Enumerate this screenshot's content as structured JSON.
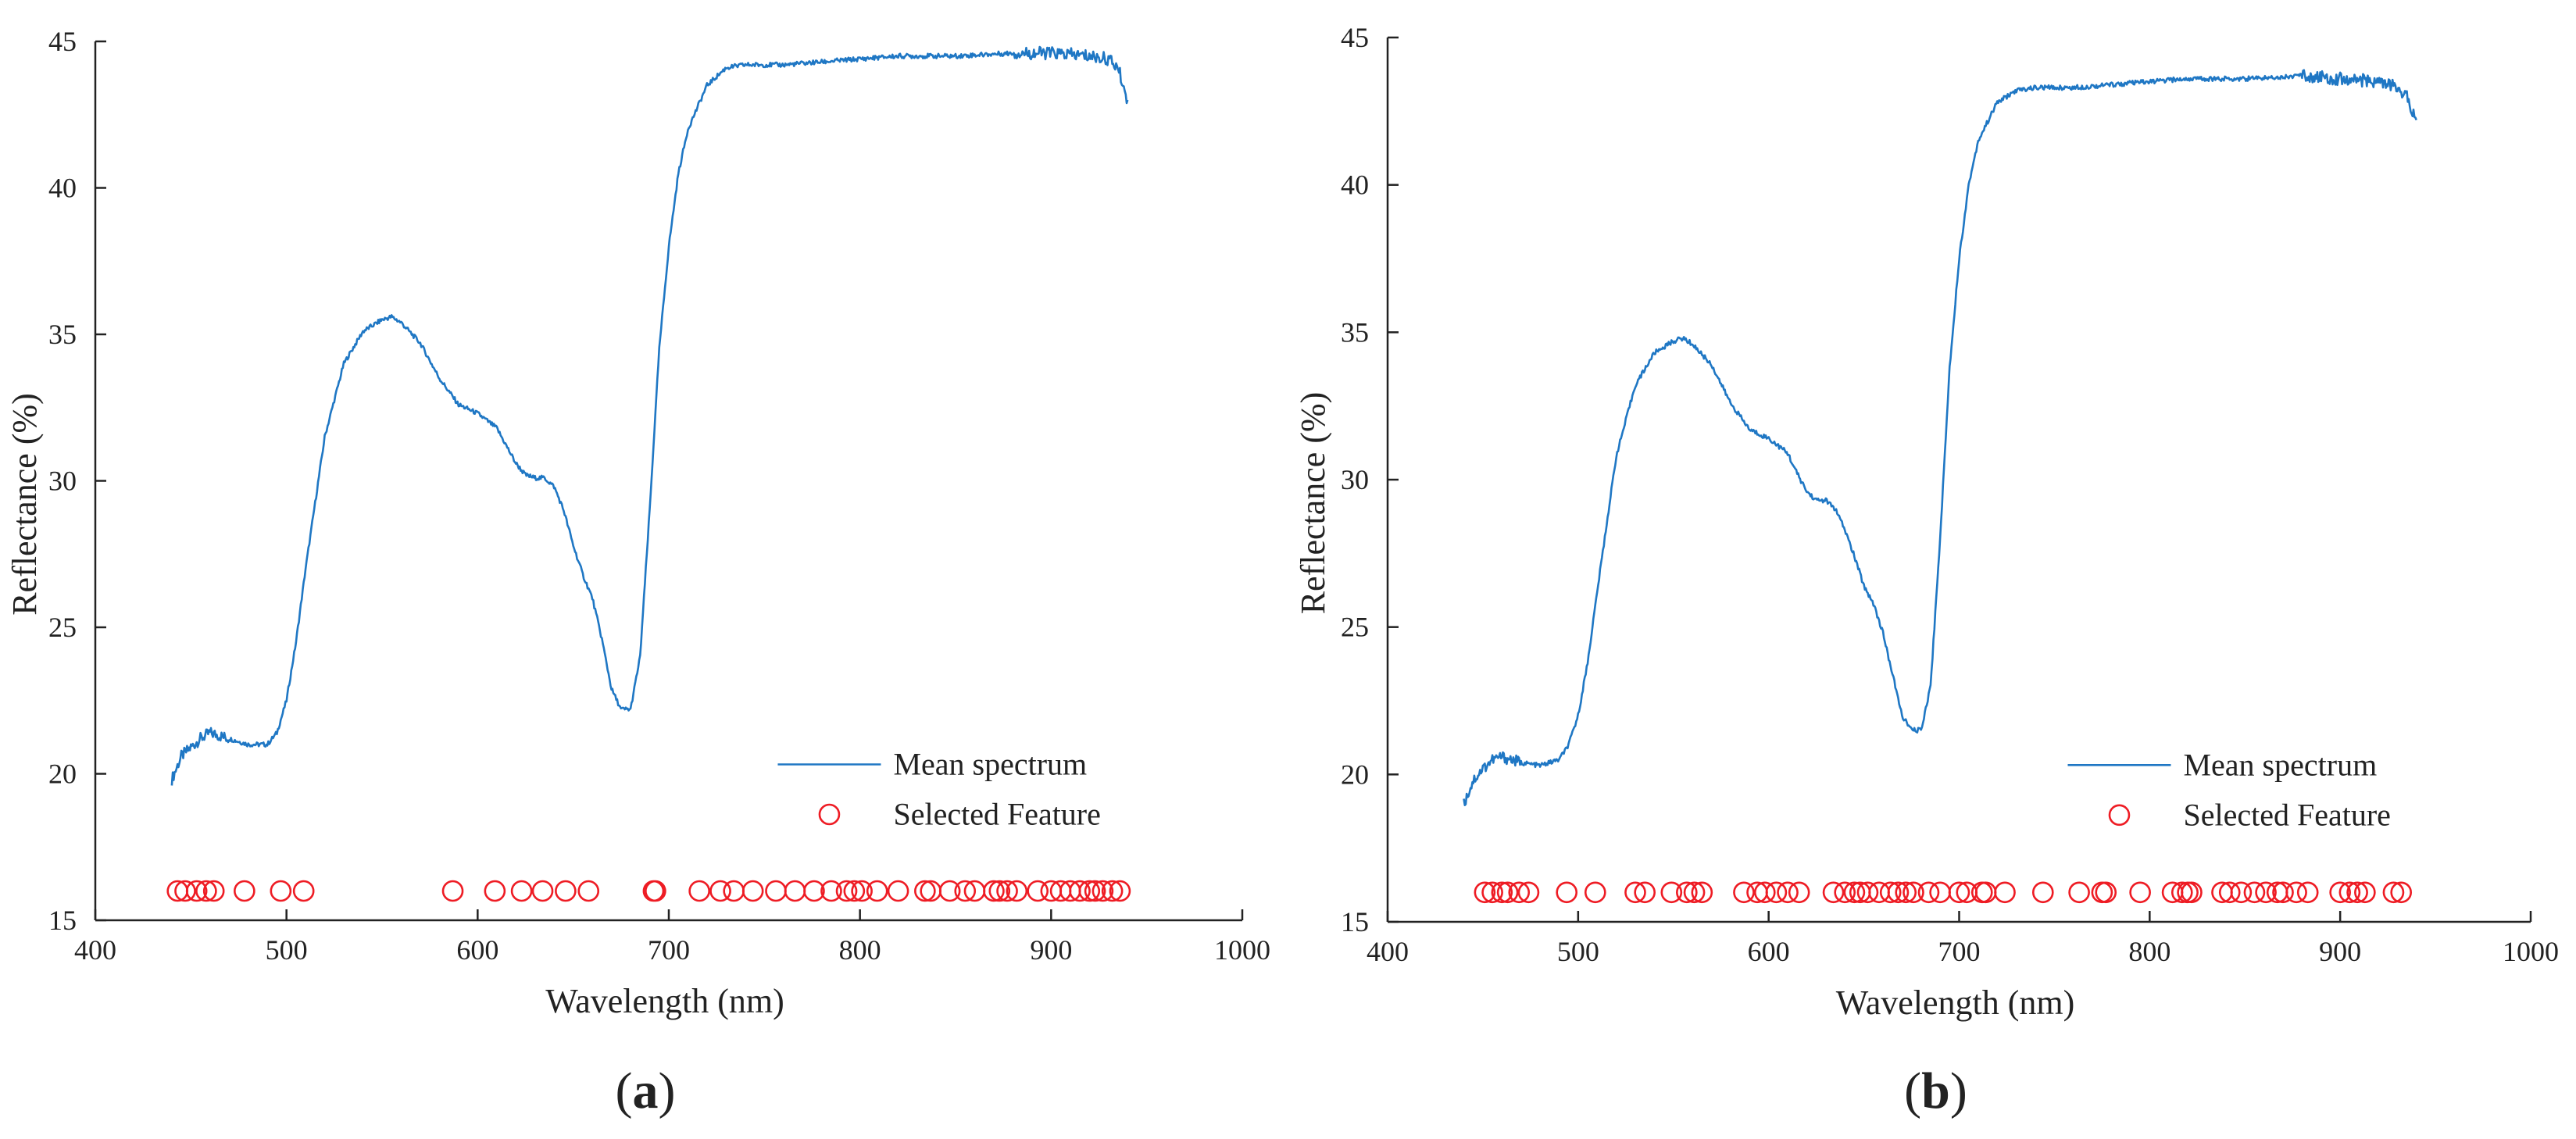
{
  "colors": {
    "spectrum": "#1f77c4",
    "feature": "#ee1c24",
    "axis": "#222222"
  },
  "chart_data": [
    {
      "type": "line",
      "panel_label": "a",
      "xlabel": "Wavelength (nm)",
      "ylabel": "Reflectance (%)",
      "xlim": [
        400,
        1000
      ],
      "ylim": [
        15,
        45
      ],
      "x_ticks": [
        400,
        500,
        600,
        700,
        800,
        900,
        1000
      ],
      "y_ticks": [
        15,
        20,
        25,
        30,
        35,
        40,
        45
      ],
      "legend": [
        "Mean spectrum",
        "Selected Feature"
      ],
      "legend_position": "lower-right",
      "series": [
        {
          "name": "Mean spectrum",
          "kind": "line",
          "x": [
            440,
            445,
            450,
            455,
            460,
            470,
            480,
            490,
            495,
            500,
            505,
            510,
            520,
            530,
            540,
            550,
            555,
            560,
            570,
            580,
            590,
            600,
            610,
            615,
            620,
            625,
            630,
            635,
            640,
            645,
            650,
            655,
            660,
            665,
            670,
            675,
            680,
            685,
            690,
            695,
            700,
            705,
            710,
            720,
            730,
            740,
            760,
            780,
            800,
            820,
            850,
            880,
            900,
            920,
            930,
            935,
            940
          ],
          "y": [
            19.8,
            20.6,
            20.9,
            21.2,
            21.4,
            21.2,
            21.0,
            21.0,
            21.4,
            22.5,
            24.5,
            27.0,
            31.5,
            34.0,
            35.1,
            35.5,
            35.6,
            35.4,
            34.7,
            33.5,
            32.6,
            32.3,
            31.8,
            31.2,
            30.6,
            30.2,
            30.1,
            30.1,
            29.8,
            29.0,
            27.8,
            26.8,
            26.0,
            24.6,
            22.9,
            22.2,
            22.2,
            24.0,
            29.0,
            34.5,
            38.0,
            40.5,
            42.0,
            43.5,
            44.1,
            44.2,
            44.2,
            44.3,
            44.4,
            44.5,
            44.5,
            44.6,
            44.6,
            44.5,
            44.4,
            44.1,
            43.0
          ]
        },
        {
          "name": "Selected Feature",
          "kind": "scatter",
          "marker": "open-circle",
          "y_level": 16,
          "x": [
            443,
            447,
            453,
            458,
            462,
            478,
            497,
            509,
            587,
            609,
            623,
            634,
            646,
            658,
            692,
            693,
            716,
            727,
            734,
            744,
            756,
            766,
            776,
            785,
            793,
            797,
            801,
            809,
            820,
            834,
            837,
            847,
            855,
            860,
            870,
            873,
            877,
            882,
            893,
            900,
            905,
            910,
            915,
            920,
            923,
            927,
            932,
            936
          ]
        }
      ]
    },
    {
      "type": "line",
      "panel_label": "b",
      "xlabel": "Wavelength (nm)",
      "ylabel": "Reflectance (%)",
      "xlim": [
        400,
        1000
      ],
      "ylim": [
        15,
        45
      ],
      "x_ticks": [
        400,
        500,
        600,
        700,
        800,
        900,
        1000
      ],
      "y_ticks": [
        15,
        20,
        25,
        30,
        35,
        40,
        45
      ],
      "legend": [
        "Mean spectrum",
        "Selected Feature"
      ],
      "legend_position": "lower-right",
      "series": [
        {
          "name": "Mean spectrum",
          "kind": "line",
          "x": [
            440,
            445,
            450,
            455,
            460,
            470,
            480,
            490,
            495,
            500,
            505,
            510,
            520,
            530,
            540,
            550,
            555,
            560,
            570,
            580,
            590,
            600,
            610,
            615,
            620,
            625,
            630,
            635,
            640,
            645,
            650,
            655,
            660,
            665,
            670,
            675,
            680,
            685,
            690,
            695,
            700,
            705,
            710,
            720,
            730,
            740,
            760,
            780,
            800,
            820,
            850,
            880,
            900,
            920,
            930,
            935,
            940
          ],
          "y": [
            19.0,
            19.8,
            20.2,
            20.5,
            20.6,
            20.4,
            20.3,
            20.5,
            21.0,
            22.0,
            23.8,
            26.2,
            30.8,
            33.2,
            34.3,
            34.7,
            34.8,
            34.6,
            33.9,
            32.6,
            31.7,
            31.4,
            30.9,
            30.2,
            29.6,
            29.3,
            29.3,
            29.0,
            28.3,
            27.4,
            26.4,
            25.8,
            24.8,
            23.4,
            22.0,
            21.5,
            21.5,
            23.0,
            28.0,
            33.8,
            37.5,
            40.0,
            41.5,
            42.8,
            43.2,
            43.3,
            43.3,
            43.4,
            43.5,
            43.6,
            43.6,
            43.7,
            43.6,
            43.5,
            43.3,
            43.0,
            42.2
          ]
        },
        {
          "name": "Selected Feature",
          "kind": "scatter",
          "marker": "open-circle",
          "y_level": 16,
          "x": [
            451,
            455,
            460,
            463,
            469,
            474,
            494,
            509,
            530,
            535,
            549,
            557,
            561,
            565,
            587,
            594,
            598,
            604,
            610,
            616,
            634,
            640,
            645,
            648,
            652,
            658,
            664,
            668,
            672,
            676,
            684,
            690,
            700,
            704,
            712,
            714,
            724,
            744,
            763,
            775,
            777,
            795,
            812,
            817,
            820,
            822,
            838,
            842,
            848,
            855,
            861,
            867,
            870,
            877,
            883,
            900,
            905,
            909,
            913,
            928,
            932
          ]
        }
      ]
    }
  ]
}
